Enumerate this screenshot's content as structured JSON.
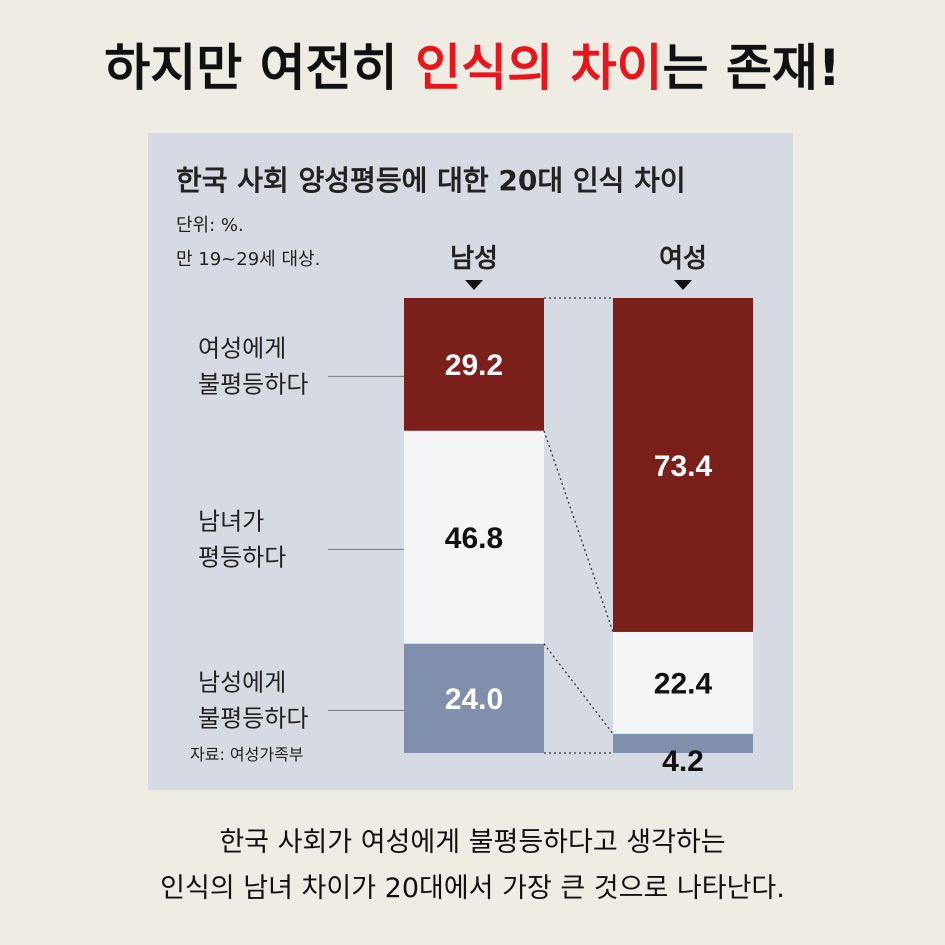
{
  "headline": {
    "part1": "하지만 여전히 ",
    "highlight": "인식의 차이",
    "part2": "는 존재!",
    "highlight_color": "#e8161b"
  },
  "chart_data": {
    "type": "bar",
    "stacked": true,
    "title": "한국 사회 양성평등에 대한 20대 인식 차이",
    "unit": "단위: %.",
    "subject": "만 19~29세 대상.",
    "source": "자료: 여성가족부",
    "categories": [
      "남성",
      "여성"
    ],
    "series": [
      {
        "name": "여성에게 불평등하다",
        "label_lines": [
          "여성에게",
          "불평등하다"
        ],
        "values": [
          29.2,
          73.4
        ],
        "color": "#7b1f1a",
        "text_color": "#ffffff"
      },
      {
        "name": "남녀가 평등하다",
        "label_lines": [
          "남녀가",
          "평등하다"
        ],
        "values": [
          46.8,
          22.4
        ],
        "color": "#f3f5f7",
        "text_color": "#111111"
      },
      {
        "name": "남성에게 불평등하다",
        "label_lines": [
          "남성에게",
          "불평등하다"
        ],
        "values": [
          24.0,
          4.2
        ],
        "color": "#8090ac",
        "text_color": "#ffffff"
      }
    ],
    "value_labels": [
      [
        "29.2",
        "73.4"
      ],
      [
        "46.8",
        "22.4"
      ],
      [
        "24.0",
        "4.2"
      ]
    ],
    "ylim": [
      0,
      100
    ],
    "legend": "left"
  },
  "caption": {
    "line1": "한국 사회가 여성에게 불평등하다고 생각하는",
    "line2": "인식의 남녀 차이가 20대에서 가장 큰 것으로 나타난다."
  }
}
